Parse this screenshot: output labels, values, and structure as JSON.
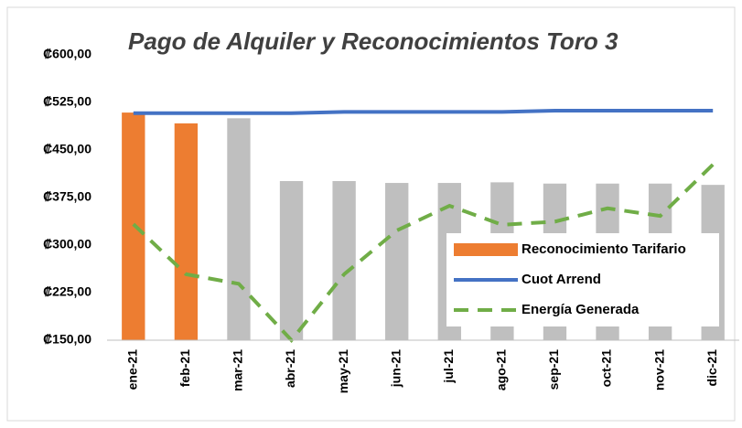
{
  "chart_data": {
    "type": "bar-line",
    "title": "Pago de Alquiler y Reconocimientos Toro 3",
    "categories": [
      "ene-21",
      "feb-21",
      "mar-21",
      "abr-21",
      "may-21",
      "jun-21",
      "jul-21",
      "ago-21",
      "sep-21",
      "oct-21",
      "nov-21",
      "dic-21"
    ],
    "series": [
      {
        "name": "Reconocimiento Tarifario",
        "type": "bar",
        "color": "#ed7d31",
        "colors": [
          "#ed7d31",
          "#ed7d31",
          "#bfbfbf",
          "#bfbfbf",
          "#bfbfbf",
          "#bfbfbf",
          "#bfbfbf",
          "#bfbfbf",
          "#bfbfbf",
          "#bfbfbf",
          "#bfbfbf",
          "#bfbfbf"
        ],
        "values": [
          509,
          492,
          500,
          401,
          401,
          398,
          398,
          399,
          397,
          397,
          397,
          395
        ]
      },
      {
        "name": "Cuot Arrend",
        "type": "line",
        "color": "#4472c4",
        "dash": false,
        "values": [
          508,
          508,
          508,
          508,
          510,
          510,
          510,
          510,
          512,
          512,
          512,
          512
        ]
      },
      {
        "name": "Energía Generada",
        "type": "line",
        "color": "#70ad47",
        "dash": true,
        "values": [
          333,
          254,
          239,
          150,
          254,
          323,
          362,
          332,
          337,
          358,
          346,
          427
        ]
      }
    ],
    "ylim": [
      150,
      600
    ],
    "yticks": [
      {
        "value": 150,
        "label": "₡150,00"
      },
      {
        "value": 225,
        "label": "₡225,00"
      },
      {
        "value": 300,
        "label": "₡300,00"
      },
      {
        "value": 375,
        "label": "₡375,00"
      },
      {
        "value": 450,
        "label": "₡450,00"
      },
      {
        "value": 525,
        "label": "₡525,00"
      },
      {
        "value": 600,
        "label": "₡600,00"
      }
    ],
    "grid": false,
    "legend": "center-right"
  }
}
